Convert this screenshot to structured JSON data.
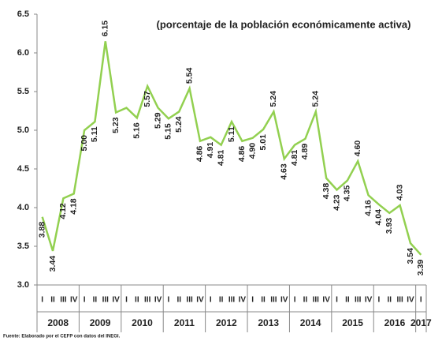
{
  "chart_data": {
    "type": "line",
    "subtitle": "(porcentaje de la población económicamente activa)",
    "source": "Fuente: Elaborado por el CEFP con datos del INEGI.",
    "categories": [
      "I",
      "II",
      "III",
      "IV",
      "I",
      "II",
      "III",
      "IV",
      "I",
      "II",
      "III",
      "IV",
      "I",
      "II",
      "III",
      "IV",
      "I",
      "II",
      "III",
      "IV",
      "I",
      "II",
      "III",
      "IV",
      "I",
      "II",
      "III",
      "IV",
      "I",
      "II",
      "III",
      "IV",
      "I",
      "II",
      "III",
      "IV",
      "I"
    ],
    "groups": [
      {
        "name": "2008",
        "size": 4
      },
      {
        "name": "2009",
        "size": 4
      },
      {
        "name": "2010",
        "size": 4
      },
      {
        "name": "2011",
        "size": 4
      },
      {
        "name": "2012",
        "size": 4
      },
      {
        "name": "2013",
        "size": 4
      },
      {
        "name": "2014",
        "size": 4
      },
      {
        "name": "2015",
        "size": 4
      },
      {
        "name": "2016",
        "size": 4
      },
      {
        "name": "2017",
        "size": 1
      }
    ],
    "values": [
      3.88,
      3.44,
      4.12,
      4.18,
      5.0,
      5.11,
      6.15,
      5.23,
      5.29,
      5.16,
      5.57,
      5.29,
      5.15,
      5.24,
      5.54,
      4.86,
      4.91,
      4.81,
      5.11,
      4.86,
      4.9,
      5.01,
      5.24,
      4.63,
      4.81,
      4.89,
      5.24,
      4.38,
      4.23,
      4.35,
      4.6,
      4.16,
      4.04,
      3.93,
      4.03,
      3.54,
      3.39
    ],
    "value_labels": [
      "3.88",
      "3.44",
      "4.12",
      "4.18",
      "5.00",
      "5.11",
      "6.15",
      "5.23",
      null,
      "5.16",
      "5.57",
      "5.29",
      "5.15",
      "5.24",
      "5.54",
      "4.86",
      "4.91",
      "4.81",
      "5.11",
      "4.86",
      "4.90",
      "5.01",
      "5.24",
      "4.63",
      "4.81",
      "4.89",
      "5.24",
      "4.38",
      "4.23",
      "4.35",
      "4.60",
      "4.16",
      "4.04",
      "3.93",
      "4.03",
      "3.54",
      "3.39"
    ],
    "color": "#92d050",
    "ylim": [
      3.0,
      6.5
    ],
    "yticks": [
      {
        "value": 3.0,
        "label": "3.0"
      },
      {
        "value": 3.5,
        "label": "3.5"
      },
      {
        "value": 4.0,
        "label": "4.0"
      },
      {
        "value": 4.5,
        "label": "4.5"
      },
      {
        "value": 5.0,
        "label": "5.0"
      },
      {
        "value": 5.5,
        "label": "5.5"
      },
      {
        "value": 6.0,
        "label": "6.0"
      },
      {
        "value": 6.5,
        "label": "6.5"
      }
    ],
    "grid": false
  }
}
